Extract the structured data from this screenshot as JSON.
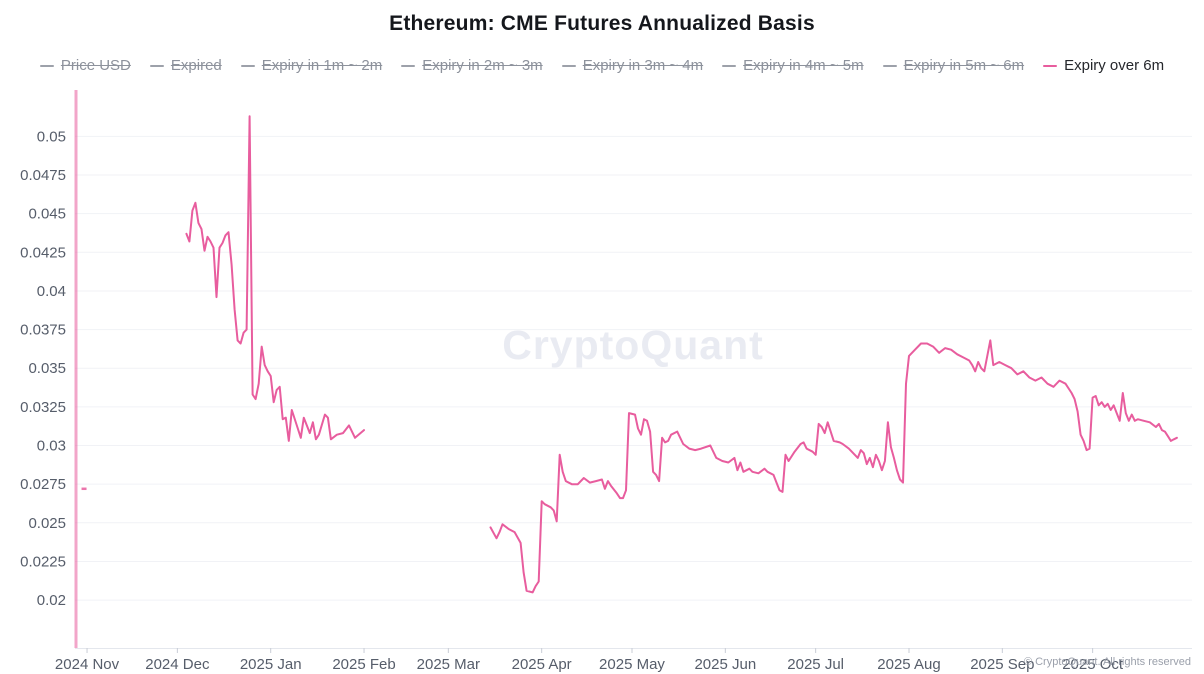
{
  "title": "Ethereum: CME Futures Annualized Basis",
  "watermark": "CryptoQuant",
  "footer": {
    "copyright": "© CryptoQuant. All rights reserved"
  },
  "colors": {
    "series_pink": "#e85d9e",
    "legend_disabled_text": "#8d929c",
    "legend_disabled_marker": "#9da1aa",
    "legend_active_text": "#25272c",
    "axis_text": "#565d6a",
    "grid": "#f1f2f6",
    "axis_line": "#e4e7ed",
    "tick": "#c9cdd6",
    "watermark": "#e9ebf2"
  },
  "chart_data": {
    "type": "line",
    "title": "Ethereum: CME Futures Annualized Basis",
    "xlabel": "",
    "ylabel": "",
    "grid": true,
    "legend_position": "top",
    "legend": {
      "items": [
        {
          "label": "Price USD",
          "active": false
        },
        {
          "label": "Expired",
          "active": false
        },
        {
          "label": "Expiry in 1m ~ 2m",
          "active": false
        },
        {
          "label": "Expiry in 2m ~ 3m",
          "active": false
        },
        {
          "label": "Expiry in 3m ~ 4m",
          "active": false
        },
        {
          "label": "Expiry in 4m ~ 5m",
          "active": false
        },
        {
          "label": "Expiry in 5m ~ 6m",
          "active": false
        },
        {
          "label": "Expiry over 6m",
          "active": true
        }
      ]
    },
    "x_range": [
      "2024-10-28",
      "2025-11-03"
    ],
    "y_range": [
      0.0169,
      0.053
    ],
    "y_ticks": [
      0.02,
      0.0225,
      0.025,
      0.0275,
      0.03,
      0.0325,
      0.035,
      0.0375,
      0.04,
      0.0425,
      0.045,
      0.0475,
      0.05
    ],
    "x_ticks": [
      {
        "date": "2024-11-01",
        "label": "2024 Nov"
      },
      {
        "date": "2024-12-01",
        "label": "2024 Dec"
      },
      {
        "date": "2025-01-01",
        "label": "2025 Jan"
      },
      {
        "date": "2025-02-01",
        "label": "2025 Feb"
      },
      {
        "date": "2025-03-01",
        "label": "2025 Mar"
      },
      {
        "date": "2025-04-01",
        "label": "2025 Apr"
      },
      {
        "date": "2025-05-01",
        "label": "2025 May"
      },
      {
        "date": "2025-06-01",
        "label": "2025 Jun"
      },
      {
        "date": "2025-07-01",
        "label": "2025 Jul"
      },
      {
        "date": "2025-08-01",
        "label": "2025 Aug"
      },
      {
        "date": "2025-09-01",
        "label": "2025 Sep"
      },
      {
        "date": "2025-10-01",
        "label": "2025 Oct"
      }
    ],
    "vertical_line_date": "2024-10-28",
    "isolated_point": [
      "2024-10-31",
      0.0272
    ],
    "series": [
      {
        "name": "Expiry over 6m",
        "color": "#e85d9e",
        "segments": [
          [
            [
              "2024-12-04",
              0.0437
            ],
            [
              "2024-12-05",
              0.0432
            ],
            [
              "2024-12-06",
              0.0452
            ],
            [
              "2024-12-07",
              0.0457
            ],
            [
              "2024-12-08",
              0.0444
            ],
            [
              "2024-12-09",
              0.044
            ],
            [
              "2024-12-10",
              0.0426
            ],
            [
              "2024-12-11",
              0.0435
            ],
            [
              "2024-12-12",
              0.0432
            ],
            [
              "2024-12-13",
              0.0428
            ],
            [
              "2024-12-14",
              0.0396
            ],
            [
              "2024-12-15",
              0.0428
            ],
            [
              "2024-12-16",
              0.0431
            ],
            [
              "2024-12-17",
              0.0436
            ],
            [
              "2024-12-18",
              0.0438
            ],
            [
              "2024-12-19",
              0.0417
            ],
            [
              "2024-12-20",
              0.0388
            ],
            [
              "2024-12-21",
              0.0368
            ],
            [
              "2024-12-22",
              0.0366
            ],
            [
              "2024-12-23",
              0.0373
            ],
            [
              "2024-12-24",
              0.0375
            ],
            [
              "2024-12-25",
              0.0513
            ],
            [
              "2024-12-26",
              0.0333
            ],
            [
              "2024-12-27",
              0.033
            ],
            [
              "2024-12-28",
              0.034
            ],
            [
              "2024-12-29",
              0.0364
            ],
            [
              "2024-12-30",
              0.0352
            ],
            [
              "2024-12-31",
              0.0348
            ],
            [
              "2025-01-01",
              0.0345
            ],
            [
              "2025-01-02",
              0.0328
            ],
            [
              "2025-01-03",
              0.0336
            ],
            [
              "2025-01-04",
              0.0338
            ],
            [
              "2025-01-05",
              0.0317
            ],
            [
              "2025-01-06",
              0.0318
            ],
            [
              "2025-01-07",
              0.0303
            ],
            [
              "2025-01-08",
              0.0323
            ],
            [
              "2025-01-10",
              0.0311
            ],
            [
              "2025-01-11",
              0.0305
            ],
            [
              "2025-01-12",
              0.0318
            ],
            [
              "2025-01-13",
              0.0313
            ],
            [
              "2025-01-14",
              0.0308
            ],
            [
              "2025-01-15",
              0.0315
            ],
            [
              "2025-01-16",
              0.0304
            ],
            [
              "2025-01-17",
              0.0307
            ],
            [
              "2025-01-19",
              0.032
            ],
            [
              "2025-01-20",
              0.0318
            ],
            [
              "2025-01-21",
              0.0304
            ],
            [
              "2025-01-23",
              0.0307
            ],
            [
              "2025-01-25",
              0.0308
            ],
            [
              "2025-01-27",
              0.0313
            ],
            [
              "2025-01-29",
              0.0305
            ],
            [
              "2025-02-01",
              0.031
            ]
          ],
          [
            [
              "2025-03-15",
              0.0247
            ],
            [
              "2025-03-17",
              0.024
            ],
            [
              "2025-03-18",
              0.0244
            ],
            [
              "2025-03-19",
              0.0249
            ],
            [
              "2025-03-21",
              0.0246
            ],
            [
              "2025-03-23",
              0.0244
            ],
            [
              "2025-03-25",
              0.0237
            ],
            [
              "2025-03-26",
              0.0218
            ],
            [
              "2025-03-27",
              0.0206
            ],
            [
              "2025-03-29",
              0.0205
            ],
            [
              "2025-03-30",
              0.0209
            ],
            [
              "2025-03-31",
              0.0212
            ],
            [
              "2025-04-01",
              0.0264
            ],
            [
              "2025-04-02",
              0.0262
            ],
            [
              "2025-04-04",
              0.026
            ],
            [
              "2025-04-05",
              0.0258
            ],
            [
              "2025-04-06",
              0.0251
            ],
            [
              "2025-04-07",
              0.0294
            ],
            [
              "2025-04-08",
              0.0283
            ],
            [
              "2025-04-09",
              0.0277
            ],
            [
              "2025-04-11",
              0.0275
            ],
            [
              "2025-04-13",
              0.0275
            ],
            [
              "2025-04-15",
              0.0279
            ],
            [
              "2025-04-17",
              0.0276
            ],
            [
              "2025-04-19",
              0.0277
            ],
            [
              "2025-04-21",
              0.0278
            ],
            [
              "2025-04-22",
              0.0272
            ],
            [
              "2025-04-23",
              0.0277
            ],
            [
              "2025-04-24",
              0.0274
            ],
            [
              "2025-04-26",
              0.0269
            ],
            [
              "2025-04-27",
              0.0266
            ],
            [
              "2025-04-28",
              0.0266
            ],
            [
              "2025-04-29",
              0.0271
            ],
            [
              "2025-04-30",
              0.0321
            ],
            [
              "2025-05-02",
              0.032
            ],
            [
              "2025-05-03",
              0.0311
            ],
            [
              "2025-05-04",
              0.0307
            ],
            [
              "2025-05-05",
              0.0317
            ],
            [
              "2025-05-06",
              0.0316
            ],
            [
              "2025-05-07",
              0.0309
            ],
            [
              "2025-05-08",
              0.0283
            ],
            [
              "2025-05-09",
              0.0281
            ],
            [
              "2025-05-10",
              0.0277
            ],
            [
              "2025-05-11",
              0.0305
            ],
            [
              "2025-05-12",
              0.0302
            ],
            [
              "2025-05-13",
              0.0303
            ],
            [
              "2025-05-14",
              0.0307
            ],
            [
              "2025-05-16",
              0.0309
            ],
            [
              "2025-05-18",
              0.0301
            ],
            [
              "2025-05-20",
              0.0298
            ],
            [
              "2025-05-22",
              0.0297
            ],
            [
              "2025-05-24",
              0.0298
            ],
            [
              "2025-05-27",
              0.03
            ],
            [
              "2025-05-29",
              0.0292
            ],
            [
              "2025-05-31",
              0.029
            ],
            [
              "2025-06-02",
              0.0289
            ],
            [
              "2025-06-04",
              0.0292
            ],
            [
              "2025-06-05",
              0.0284
            ],
            [
              "2025-06-06",
              0.0289
            ],
            [
              "2025-06-07",
              0.0283
            ],
            [
              "2025-06-09",
              0.0285
            ],
            [
              "2025-06-10",
              0.0283
            ],
            [
              "2025-06-12",
              0.0282
            ],
            [
              "2025-06-14",
              0.0285
            ],
            [
              "2025-06-15",
              0.0283
            ],
            [
              "2025-06-17",
              0.0281
            ],
            [
              "2025-06-18",
              0.0276
            ],
            [
              "2025-06-19",
              0.0271
            ],
            [
              "2025-06-20",
              0.027
            ],
            [
              "2025-06-21",
              0.0294
            ],
            [
              "2025-06-22",
              0.029
            ],
            [
              "2025-06-24",
              0.0296
            ],
            [
              "2025-06-26",
              0.0301
            ],
            [
              "2025-06-27",
              0.0302
            ],
            [
              "2025-06-28",
              0.0298
            ],
            [
              "2025-06-30",
              0.0296
            ],
            [
              "2025-07-01",
              0.0294
            ],
            [
              "2025-07-02",
              0.0314
            ],
            [
              "2025-07-03",
              0.0312
            ],
            [
              "2025-07-04",
              0.0308
            ],
            [
              "2025-07-05",
              0.0315
            ],
            [
              "2025-07-07",
              0.0303
            ],
            [
              "2025-07-09",
              0.0302
            ],
            [
              "2025-07-10",
              0.0301
            ],
            [
              "2025-07-12",
              0.0298
            ],
            [
              "2025-07-14",
              0.0294
            ],
            [
              "2025-07-15",
              0.0292
            ],
            [
              "2025-07-16",
              0.0297
            ],
            [
              "2025-07-17",
              0.0295
            ],
            [
              "2025-07-18",
              0.0288
            ],
            [
              "2025-07-19",
              0.0292
            ],
            [
              "2025-07-20",
              0.0286
            ],
            [
              "2025-07-21",
              0.0294
            ],
            [
              "2025-07-22",
              0.029
            ],
            [
              "2025-07-23",
              0.0284
            ],
            [
              "2025-07-24",
              0.029
            ],
            [
              "2025-07-25",
              0.0315
            ],
            [
              "2025-07-26",
              0.0299
            ],
            [
              "2025-07-27",
              0.0292
            ],
            [
              "2025-07-28",
              0.0284
            ],
            [
              "2025-07-29",
              0.0278
            ],
            [
              "2025-07-30",
              0.0276
            ],
            [
              "2025-07-31",
              0.034
            ],
            [
              "2025-08-01",
              0.0358
            ],
            [
              "2025-08-03",
              0.0362
            ],
            [
              "2025-08-05",
              0.0366
            ],
            [
              "2025-08-07",
              0.0366
            ],
            [
              "2025-08-09",
              0.0364
            ],
            [
              "2025-08-11",
              0.036
            ],
            [
              "2025-08-13",
              0.0363
            ],
            [
              "2025-08-15",
              0.0362
            ],
            [
              "2025-08-17",
              0.0359
            ],
            [
              "2025-08-19",
              0.0357
            ],
            [
              "2025-08-21",
              0.0355
            ],
            [
              "2025-08-22",
              0.0352
            ],
            [
              "2025-08-23",
              0.0348
            ],
            [
              "2025-08-24",
              0.0354
            ],
            [
              "2025-08-25",
              0.035
            ],
            [
              "2025-08-26",
              0.0348
            ],
            [
              "2025-08-28",
              0.0368
            ],
            [
              "2025-08-29",
              0.0352
            ],
            [
              "2025-08-31",
              0.0354
            ],
            [
              "2025-09-02",
              0.0352
            ],
            [
              "2025-09-04",
              0.035
            ],
            [
              "2025-09-06",
              0.0346
            ],
            [
              "2025-09-08",
              0.0348
            ],
            [
              "2025-09-10",
              0.0344
            ],
            [
              "2025-09-12",
              0.0342
            ],
            [
              "2025-09-14",
              0.0344
            ],
            [
              "2025-09-16",
              0.034
            ],
            [
              "2025-09-18",
              0.0338
            ],
            [
              "2025-09-20",
              0.0342
            ],
            [
              "2025-09-22",
              0.034
            ],
            [
              "2025-09-24",
              0.0334
            ],
            [
              "2025-09-25",
              0.033
            ],
            [
              "2025-09-26",
              0.0322
            ],
            [
              "2025-09-27",
              0.0307
            ],
            [
              "2025-09-28",
              0.0303
            ],
            [
              "2025-09-29",
              0.0297
            ],
            [
              "2025-09-30",
              0.0298
            ],
            [
              "2025-10-01",
              0.0331
            ],
            [
              "2025-10-02",
              0.0332
            ],
            [
              "2025-10-03",
              0.0326
            ],
            [
              "2025-10-04",
              0.0328
            ],
            [
              "2025-10-05",
              0.0325
            ],
            [
              "2025-10-06",
              0.0327
            ],
            [
              "2025-10-07",
              0.0323
            ],
            [
              "2025-10-08",
              0.0326
            ],
            [
              "2025-10-09",
              0.0321
            ],
            [
              "2025-10-10",
              0.0316
            ],
            [
              "2025-10-11",
              0.0334
            ],
            [
              "2025-10-12",
              0.0321
            ],
            [
              "2025-10-13",
              0.0316
            ],
            [
              "2025-10-14",
              0.032
            ],
            [
              "2025-10-15",
              0.0316
            ],
            [
              "2025-10-16",
              0.0317
            ],
            [
              "2025-10-18",
              0.0316
            ],
            [
              "2025-10-20",
              0.0315
            ],
            [
              "2025-10-22",
              0.0312
            ],
            [
              "2025-10-23",
              0.0314
            ],
            [
              "2025-10-24",
              0.031
            ],
            [
              "2025-10-25",
              0.0309
            ],
            [
              "2025-10-26",
              0.0306
            ],
            [
              "2025-10-27",
              0.0303
            ],
            [
              "2025-10-28",
              0.0304
            ],
            [
              "2025-10-29",
              0.0305
            ]
          ]
        ]
      }
    ]
  }
}
